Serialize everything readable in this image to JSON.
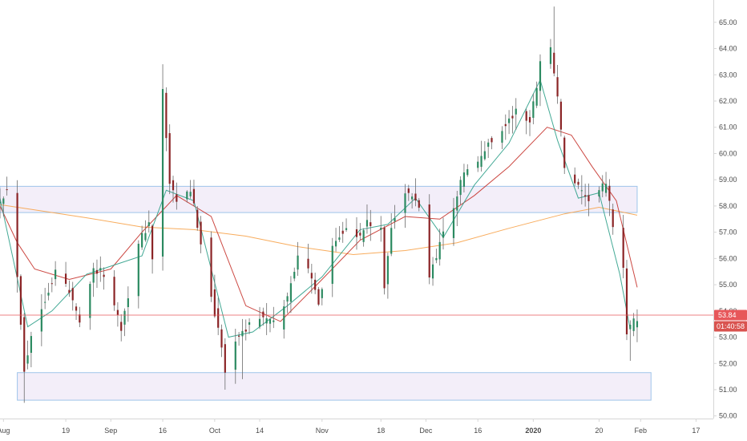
{
  "chart_data": {
    "type": "candlestick",
    "title": "",
    "y_axis": {
      "position": "right",
      "ylim": [
        49.9,
        65.85
      ],
      "tick_values": [
        50,
        51,
        52,
        53,
        54,
        55,
        56,
        57,
        58,
        59,
        60,
        61,
        62,
        63,
        64,
        65
      ],
      "tick_labels": [
        "50.00",
        "51.00",
        "52.00",
        "53.00",
        "54.00",
        "55.00",
        "56.00",
        "57.00",
        "58.00",
        "59.00",
        "60.00",
        "61.00",
        "62.00",
        "63.00",
        "64.00",
        "65.00"
      ]
    },
    "x_axis": {
      "start_date": "2019-07-31",
      "end_date": "2020-02-22",
      "tick_dates": [
        "2019-08-01",
        "2019-08-19",
        "2019-09-01",
        "2019-09-16",
        "2019-10-01",
        "2019-10-14",
        "2019-11-01",
        "2019-11-18",
        "2019-12-01",
        "2019-12-16",
        "2020-01-01",
        "2020-01-20",
        "2020-02-01",
        "2020-02-17"
      ],
      "tick_labels": [
        "Aug",
        "19",
        "Sep",
        "16",
        "Oct",
        "14",
        "Nov",
        "18",
        "Dec",
        "16",
        "2020",
        "20",
        "Feb",
        "17"
      ],
      "bold_labels": [
        "2020"
      ]
    },
    "price_line": {
      "value": 53.84,
      "label": "53.84",
      "color": "#e7575a"
    },
    "countdown": {
      "label": "01:40:58",
      "color": "#d9534f"
    },
    "zones": [
      {
        "date_start": "2019-07-31",
        "date_end": "2020-01-31",
        "low": 57.75,
        "high": 58.75,
        "fill": "#f3eef9",
        "stroke": "#9ec5ea"
      },
      {
        "date_start": "2019-08-05",
        "date_end": "2020-02-04",
        "low": 50.6,
        "high": 51.65,
        "fill": "#f3eef9",
        "stroke": "#9ec5ea"
      }
    ],
    "colors": {
      "up_body": "#2c8a61",
      "down_body": "#8b2426",
      "wick": "#6b6b6b",
      "ma_fast": "#2fa08a",
      "ma_mid": "#c7342e",
      "ma_slow": "#f7a34b",
      "axis_text": "#4a4a4a",
      "axis_line": "#d6d6d6"
    },
    "series": [
      {
        "key": "ma_slow",
        "points": [
          [
            "2019-07-31",
            58.05
          ],
          [
            "2019-08-10",
            57.85
          ],
          [
            "2019-08-25",
            57.55
          ],
          [
            "2019-09-10",
            57.2
          ],
          [
            "2019-09-25",
            57.1
          ],
          [
            "2019-10-10",
            56.85
          ],
          [
            "2019-10-25",
            56.45
          ],
          [
            "2019-11-10",
            56.15
          ],
          [
            "2019-11-25",
            56.3
          ],
          [
            "2019-12-10",
            56.6
          ],
          [
            "2019-12-25",
            57.15
          ],
          [
            "2020-01-10",
            57.7
          ],
          [
            "2020-01-20",
            57.95
          ],
          [
            "2020-01-31",
            57.65
          ]
        ]
      },
      {
        "key": "ma_mid",
        "points": [
          [
            "2019-07-31",
            58.0
          ],
          [
            "2019-08-05",
            56.6
          ],
          [
            "2019-08-10",
            55.6
          ],
          [
            "2019-08-20",
            55.2
          ],
          [
            "2019-09-01",
            55.6
          ],
          [
            "2019-09-10",
            57.0
          ],
          [
            "2019-09-20",
            58.4
          ],
          [
            "2019-09-30",
            57.6
          ],
          [
            "2019-10-10",
            54.2
          ],
          [
            "2019-10-20",
            53.6
          ],
          [
            "2019-11-01",
            55.2
          ],
          [
            "2019-11-12",
            56.7
          ],
          [
            "2019-11-25",
            57.6
          ],
          [
            "2019-12-05",
            57.5
          ],
          [
            "2019-12-15",
            58.4
          ],
          [
            "2019-12-25",
            59.5
          ],
          [
            "2020-01-05",
            61.0
          ],
          [
            "2020-01-12",
            60.7
          ],
          [
            "2020-01-18",
            59.5
          ],
          [
            "2020-01-25",
            58.2
          ],
          [
            "2020-01-31",
            54.9
          ]
        ]
      },
      {
        "key": "ma_fast",
        "points": [
          [
            "2019-07-31",
            58.3
          ],
          [
            "2019-08-08",
            53.4
          ],
          [
            "2019-08-15",
            54.0
          ],
          [
            "2019-08-25",
            55.4
          ],
          [
            "2019-09-10",
            56.1
          ],
          [
            "2019-09-17",
            58.6
          ],
          [
            "2019-09-25",
            58.2
          ],
          [
            "2019-10-05",
            53.0
          ],
          [
            "2019-10-12",
            53.2
          ],
          [
            "2019-10-22",
            54.2
          ],
          [
            "2019-11-01",
            55.3
          ],
          [
            "2019-11-12",
            57.1
          ],
          [
            "2019-11-20",
            57.3
          ],
          [
            "2019-11-28",
            58.3
          ],
          [
            "2019-12-06",
            56.8
          ],
          [
            "2019-12-15",
            58.8
          ],
          [
            "2019-12-25",
            60.4
          ],
          [
            "2020-01-03",
            62.8
          ],
          [
            "2020-01-08",
            60.5
          ],
          [
            "2020-01-14",
            58.3
          ],
          [
            "2020-01-20",
            58.5
          ],
          [
            "2020-01-26",
            55.4
          ],
          [
            "2020-01-29",
            53.3
          ]
        ]
      }
    ],
    "candle_path": [
      [
        "2019-07-31",
        58.3
      ],
      [
        "2019-08-02",
        58.6
      ],
      [
        "2019-08-05",
        55.4
      ],
      [
        "2019-08-07",
        51.8
      ],
      [
        "2019-08-09",
        53.0
      ],
      [
        "2019-08-13",
        54.5
      ],
      [
        "2019-08-16",
        55.5
      ],
      [
        "2019-08-19",
        55.0
      ],
      [
        "2019-08-23",
        53.7
      ],
      [
        "2019-08-27",
        55.6
      ],
      [
        "2019-08-30",
        55.4
      ],
      [
        "2019-09-04",
        53.4
      ],
      [
        "2019-09-09",
        56.5
      ],
      [
        "2019-09-12",
        57.4
      ],
      [
        "2019-09-13",
        55.9
      ],
      [
        "2019-09-16",
        62.4
      ],
      [
        "2019-09-18",
        58.8
      ],
      [
        "2019-09-20",
        58.1
      ],
      [
        "2019-09-24",
        58.6
      ],
      [
        "2019-09-26",
        57.3
      ],
      [
        "2019-09-30",
        54.6
      ],
      [
        "2019-10-03",
        52.6
      ],
      [
        "2019-10-04",
        51.6
      ],
      [
        "2019-10-07",
        53.0
      ],
      [
        "2019-10-09",
        53.1
      ],
      [
        "2019-10-11",
        53.5
      ],
      [
        "2019-10-14",
        53.8
      ],
      [
        "2019-10-18",
        53.5
      ],
      [
        "2019-10-22",
        54.5
      ],
      [
        "2019-10-25",
        56.2
      ],
      [
        "2019-10-28",
        55.5
      ],
      [
        "2019-10-31",
        54.4
      ],
      [
        "2019-11-04",
        56.5
      ],
      [
        "2019-11-06",
        56.9
      ],
      [
        "2019-11-08",
        57.3
      ],
      [
        "2019-11-12",
        56.8
      ],
      [
        "2019-11-14",
        57.4
      ],
      [
        "2019-11-18",
        57.0
      ],
      [
        "2019-11-19",
        54.9
      ],
      [
        "2019-11-21",
        57.3
      ],
      [
        "2019-11-25",
        58.5
      ],
      [
        "2019-11-27",
        58.3
      ],
      [
        "2019-11-29",
        58.0
      ],
      [
        "2019-12-02",
        55.3
      ],
      [
        "2019-12-05",
        56.6
      ],
      [
        "2019-12-09",
        58.0
      ],
      [
        "2019-12-12",
        59.3
      ],
      [
        "2019-12-16",
        59.6
      ],
      [
        "2019-12-19",
        60.4
      ],
      [
        "2019-12-23",
        60.9
      ],
      [
        "2019-12-27",
        61.6
      ],
      [
        "2019-12-31",
        61.2
      ],
      [
        "2020-01-02",
        62.6
      ],
      [
        "2020-01-03",
        63.6
      ],
      [
        "2020-01-06",
        64.0
      ],
      [
        "2020-01-08",
        62.2
      ],
      [
        "2020-01-10",
        59.4
      ],
      [
        "2020-01-13",
        58.9
      ],
      [
        "2020-01-16",
        58.2
      ],
      [
        "2020-01-20",
        58.6
      ],
      [
        "2020-01-22",
        58.8
      ],
      [
        "2020-01-24",
        57.3
      ],
      [
        "2020-01-27",
        55.7
      ],
      [
        "2020-01-28",
        53.1
      ],
      [
        "2020-01-30",
        53.6
      ],
      [
        "2020-02-01",
        53.84
      ]
    ],
    "special_wicks": [
      {
        "date": "2019-08-08",
        "low": 50.5
      },
      {
        "date": "2019-09-16",
        "high": 63.4
      },
      {
        "date": "2019-10-05",
        "low": 51.0
      },
      {
        "date": "2019-10-10",
        "low": 51.4
      },
      {
        "date": "2020-01-08",
        "high": 65.6
      },
      {
        "date": "2020-01-30",
        "low": 52.1
      }
    ]
  }
}
